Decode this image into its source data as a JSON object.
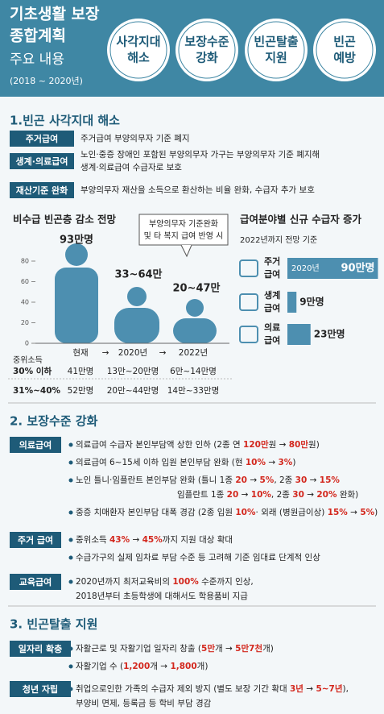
{
  "header": {
    "title_lines": [
      "기초생활 보장",
      "종합계획"
    ],
    "subtitle": "주요 내용",
    "period": "(2018 ~ 2020년)",
    "badges": [
      [
        "사각지대",
        "해소"
      ],
      [
        "보장수준",
        "강화"
      ],
      [
        "빈곤탈출",
        "지원"
      ],
      [
        "빈곤",
        "예방"
      ]
    ]
  },
  "section1": {
    "title": "1.빈곤 사각지대 해소",
    "rows": [
      {
        "label": "주거급여",
        "lines": [
          "주거급여 부양의무자 기준 폐지"
        ]
      },
      {
        "label": "생계·의료급여",
        "lines": [
          "노인·중증 장애인 포함된 부양의무자 가구는 부양의무자 기준 폐지해",
          "생계·의료급여 수급자로 보호"
        ]
      },
      {
        "label": "재산기준 완화",
        "lines": [
          "부양의무자 재산을 소득으로 환산하는 비율 완화, 수급자 추가 보호"
        ]
      }
    ]
  },
  "left_chart": {
    "title": "비수급 빈곤층 감소 전망",
    "callout": [
      "부양의무자 기준완화",
      "및 타 복지 급여 반영 시"
    ],
    "yticks": [
      0,
      20,
      40,
      60,
      80
    ],
    "figure_labels": [
      "93만명",
      "33~64만",
      "20~47만"
    ],
    "timeline": [
      "현재",
      "2020년",
      "2022년"
    ],
    "arrow": "→",
    "income_label": "중위소득",
    "rows": [
      {
        "label": "30% 이하",
        "values": [
          "41만명",
          "13만~20만명",
          "6만~14만명"
        ]
      },
      {
        "label": "31%~40%",
        "values": [
          "52만명",
          "20만~44만명",
          "14만~33만명"
        ]
      }
    ]
  },
  "right_chart": {
    "title": "급여분야별 신규 수급자 증가",
    "subtitle": "2022년까지 전망 기준",
    "year": "2020년",
    "rows": [
      {
        "label": [
          "주거",
          "급여"
        ],
        "value": 90,
        "value_label": "90만명"
      },
      {
        "label": [
          "생계",
          "급여"
        ],
        "value": 9,
        "value_label": "9만명"
      },
      {
        "label": [
          "의료",
          "급여"
        ],
        "value": 23,
        "value_label": "23만명"
      }
    ]
  },
  "section2": {
    "title": "2. 보장수준 강화",
    "groups": [
      {
        "label": "의료급여",
        "bullets": [
          [
            [
              "의료급여 수급자 본인부담액 상한 인하 (2종 연 ",
              "120만",
              "원 → ",
              "80만",
              "원)"
            ]
          ],
          [
            [
              "의료급여 6~15세 이하 입원 본인부담 완화 (현 ",
              "10%",
              " → ",
              "3%",
              ")"
            ]
          ],
          [
            [
              "노인 틀니·임플란트 본인부담 완화 (틀니 1종 ",
              "20",
              " → ",
              "5%",
              ", 2종 ",
              "30",
              " → ",
              "15%"
            ],
            [
              "임플란트 1종 ",
              "20",
              " → ",
              "10%",
              ", 2종 ",
              "30",
              " → ",
              "20%",
              " 완화)"
            ]
          ],
          [
            [
              "중증 치매환자 본인부담 대폭 경감 (2종 입원 ",
              "10%",
              "· 외래 (병원급이상) ",
              "15%",
              " → ",
              "5%",
              ")"
            ]
          ]
        ]
      },
      {
        "label": "주거 급여",
        "bullets": [
          [
            [
              "중위소득 ",
              "43%",
              " → ",
              "45%",
              "까지 지원 대상 확대"
            ]
          ],
          [
            [
              "수급가구의 실제 임차료 부담 수준 등 고려해 기준 임대료 단계적 인상"
            ]
          ]
        ]
      },
      {
        "label": "교육급여",
        "bullets": [
          [
            [
              "2020년까지 최저교육비의 ",
              "100%",
              " 수준까지 인상,"
            ],
            [
              "2018년부터 초등학생에 대해서도 학용품비 지급"
            ]
          ]
        ]
      }
    ]
  },
  "section3": {
    "title": "3. 빈곤탈출 지원",
    "groups": [
      {
        "label": "일자리 확충",
        "bullets": [
          [
            [
              "자활근로 및 자활기업 일자리 창출 (",
              "5만",
              "개 → ",
              "5만7천",
              "개)"
            ]
          ],
          [
            [
              "자활기업 수 (",
              "1,200",
              "개 → ",
              "1,800",
              "개)"
            ]
          ]
        ]
      },
      {
        "label": "청년 자립",
        "bullets": [
          [
            [
              "취업으로인한 가족의 수급자 제외 방지 (별도 보장 기간 확대 ",
              "3년",
              " → ",
              "5~7년",
              "),"
            ],
            [
              "부양비 면제, 등록금 등 학비 부담 경감"
            ]
          ]
        ]
      }
    ]
  }
}
